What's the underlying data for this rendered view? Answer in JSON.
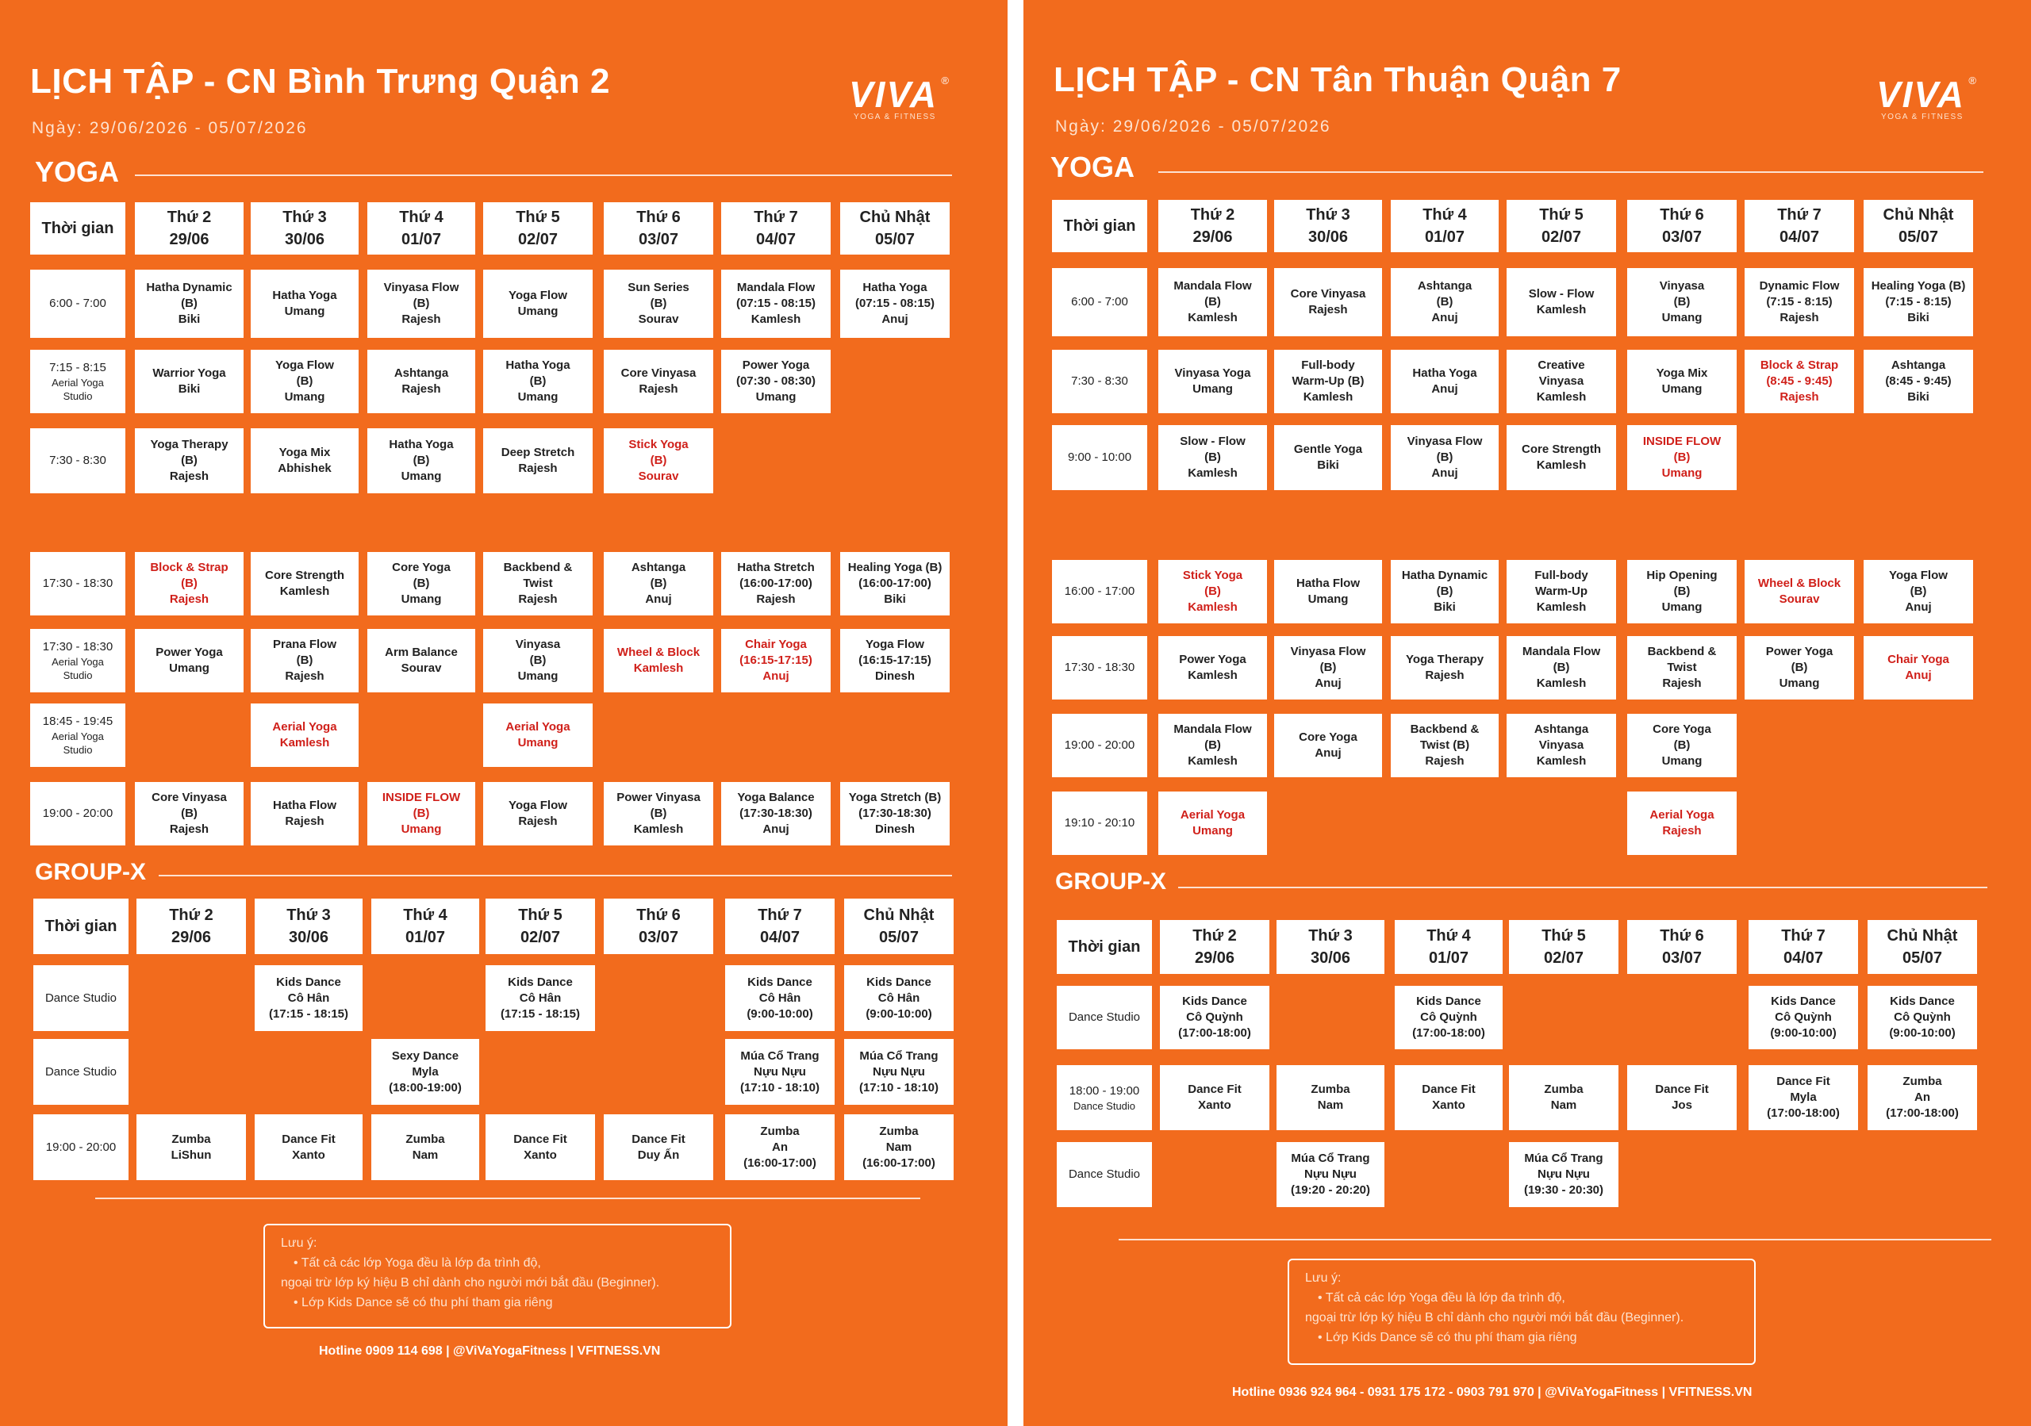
{
  "brand": {
    "logo": "VIVA",
    "logo_reg": "®",
    "logo_sub": "YOGA & FITNESS"
  },
  "colors": {
    "page_bg": "#f26b1d",
    "cell_bg": "#ffffff",
    "text": "#222222",
    "highlight": "#d0201a"
  },
  "pages": [
    {
      "title": "LỊCH TẬP - CN Bình Trưng Quận 2",
      "date": "Ngày: 29/06/2026 - 05/07/2026",
      "yoga": {
        "label": "YOGA",
        "header": [
          "Thời gian",
          "Thứ 2|29/06",
          "Thứ 3|30/06",
          "Thứ 4|01/07",
          "Thứ 5|02/07",
          "Thứ 6|03/07",
          "Thứ 7|04/07",
          "Chủ Nhật|05/07"
        ],
        "rows": [
          [
            "6:00 - 7:00",
            "Hatha Dynamic|(B)|Biki",
            "Hatha Yoga|Umang",
            "Vinyasa Flow|(B)|Rajesh",
            "Yoga Flow|Umang",
            "Sun Series|(B)|Sourav",
            "Mandala Flow|(07:15 - 08:15)|Kamlesh",
            "Hatha Yoga|(07:15 - 08:15)|Anuj"
          ],
          [
            "7:15 - 8:15|Aerial Yoga|Studio",
            "Warrior Yoga|Biki",
            "Yoga Flow|(B)|Umang",
            "Ashtanga|Rajesh",
            "Hatha Yoga|(B)|Umang",
            "Core Vinyasa|Rajesh",
            "Power Yoga|(07:30 - 08:30)|Umang",
            ""
          ],
          [
            "7:30 - 8:30",
            "Yoga Therapy|(B)|Rajesh",
            "Yoga Mix|Abhishek",
            "Hatha Yoga|(B)|Umang",
            "Deep Stretch|Rajesh",
            "!Stick Yoga|(B)|Sourav",
            "",
            ""
          ],
          [
            "17:30 - 18:30",
            "!Block & Strap|(B)|Rajesh",
            "Core Strength|Kamlesh",
            "Core Yoga|(B)|Umang",
            "Backbend &|Twist|Rajesh",
            "Ashtanga|(B)|Anuj",
            "Hatha Stretch|(16:00-17:00)|Rajesh",
            "Healing Yoga (B)|(16:00-17:00)|Biki"
          ],
          [
            "17:30 - 18:30|Aerial Yoga|Studio",
            "Power Yoga|Umang",
            "Prana Flow|(B)|Rajesh",
            "Arm Balance|Sourav",
            "Vinyasa|(B)|Umang",
            "!Wheel & Block|Kamlesh",
            "!Chair Yoga|(16:15-17:15)|Anuj",
            "Yoga Flow|(16:15-17:15)|Dinesh"
          ],
          [
            "18:45 - 19:45|Aerial Yoga|Studio",
            "",
            "!Aerial Yoga|Kamlesh",
            "",
            "!Aerial Yoga|Umang",
            "",
            "",
            ""
          ],
          [
            "19:00 - 20:00",
            "Core Vinyasa|(B)|Rajesh",
            "Hatha Flow|Rajesh",
            "!INSIDE FLOW|(B)|Umang",
            "Yoga Flow|Rajesh",
            "Power Vinyasa|(B)|Kamlesh",
            "Yoga Balance|(17:30-18:30)|Anuj",
            "Yoga Stretch (B)|(17:30-18:30)|Dinesh"
          ]
        ]
      },
      "groupx": {
        "label": "GROUP-X",
        "header": [
          "Thời gian",
          "Thứ 2|29/06",
          "Thứ 3|30/06",
          "Thứ 4|01/07",
          "Thứ 5|02/07",
          "Thứ 6|03/07",
          "Thứ 7|04/07",
          "Chủ Nhật|05/07"
        ],
        "rows": [
          [
            "Dance Studio",
            "",
            "Kids Dance|Cô Hân|(17:15 - 18:15)",
            "",
            "Kids Dance|Cô Hân|(17:15 - 18:15)",
            "",
            "Kids Dance|Cô Hân|(9:00-10:00)",
            "Kids Dance|Cô Hân|(9:00-10:00)"
          ],
          [
            "Dance Studio",
            "",
            "",
            "Sexy Dance|Myla|(18:00-19:00)",
            "",
            "",
            "Múa Cổ Trang|Nựu Nựu|(17:10 - 18:10)",
            "Múa Cổ Trang|Nựu Nựu|(17:10 - 18:10)"
          ],
          [
            "19:00 - 20:00",
            "Zumba|LiShun",
            "Dance Fit|Xanto",
            "Zumba|Nam",
            "Dance Fit|Xanto",
            "Dance Fit|Duy Ấn",
            "Zumba|An|(16:00-17:00)",
            "Zumba|Nam|(16:00-17:00)"
          ]
        ]
      },
      "notes": {
        "title": "Lưu ý:",
        "lines": [
          "• Tất cả các lớp Yoga đều là lớp đa trình độ,",
          "ngoại trừ lớp ký hiệu B chỉ dành cho người mới bắt đầu (Beginner).",
          "• Lớp Kids Dance sẽ có thu phí tham gia riêng"
        ]
      },
      "hotline": "Hotline 0909 114 698 | @ViVaYogaFitness | VFITNESS.VN"
    },
    {
      "title": "LỊCH TẬP - CN Tân Thuận Quận 7",
      "date": "Ngày: 29/06/2026 - 05/07/2026",
      "yoga": {
        "label": "YOGA",
        "header": [
          "Thời gian",
          "Thứ 2|29/06",
          "Thứ 3|30/06",
          "Thứ 4|01/07",
          "Thứ 5|02/07",
          "Thứ 6|03/07",
          "Thứ 7|04/07",
          "Chủ Nhật|05/07"
        ],
        "rows": [
          [
            "6:00 - 7:00",
            "Mandala Flow|(B)|Kamlesh",
            "Core Vinyasa|Rajesh",
            "Ashtanga|(B)|Anuj",
            "Slow - Flow|Kamlesh",
            "Vinyasa|(B)|Umang",
            "Dynamic Flow|(7:15 - 8:15)|Rajesh",
            "Healing Yoga (B)|(7:15 - 8:15)|Biki"
          ],
          [
            "7:30 - 8:30",
            "Vinyasa Yoga|Umang",
            "Full-body|Warm-Up (B)|Kamlesh",
            "Hatha Yoga|Anuj",
            "Creative|Vinyasa|Kamlesh",
            "Yoga Mix|Umang",
            "!Block & Strap|(8:45 - 9:45)|Rajesh",
            "Ashtanga|(8:45 - 9:45)|Biki"
          ],
          [
            "9:00 - 10:00",
            "Slow - Flow|(B)|Kamlesh",
            "Gentle Yoga|Biki",
            "Vinyasa Flow|(B)|Anuj",
            "Core Strength|Kamlesh",
            "!INSIDE FLOW|(B)|Umang",
            "",
            ""
          ],
          [
            "16:00 - 17:00",
            "!Stick Yoga|(B)|Kamlesh",
            "Hatha Flow|Umang",
            "Hatha Dynamic|(B)|Biki",
            "Full-body|Warm-Up|Kamlesh",
            "Hip Opening|(B)|Umang",
            "!Wheel & Block|Sourav",
            "Yoga Flow|(B)|Anuj"
          ],
          [
            "17:30 - 18:30",
            "Power Yoga|Kamlesh",
            "Vinyasa Flow|(B)|Anuj",
            "Yoga Therapy|Rajesh",
            "Mandala Flow|(B)|Kamlesh",
            "Backbend &|Twist|Rajesh",
            "Power Yoga|(B)|Umang",
            "!Chair Yoga|Anuj"
          ],
          [
            "19:00 - 20:00",
            "Mandala Flow|(B)|Kamlesh",
            "Core Yoga|Anuj",
            "Backbend &|Twist (B)|Rajesh",
            "Ashtanga|Vinyasa|Kamlesh",
            "Core Yoga|(B)|Umang",
            "",
            ""
          ],
          [
            "19:10 - 20:10",
            "!Aerial Yoga|Umang",
            "",
            "",
            "",
            "!Aerial Yoga|Rajesh",
            "",
            ""
          ]
        ]
      },
      "groupx": {
        "label": "GROUP-X",
        "header": [
          "Thời gian",
          "Thứ 2|29/06",
          "Thứ 3|30/06",
          "Thứ 4|01/07",
          "Thứ 5|02/07",
          "Thứ 6|03/07",
          "Thứ 7|04/07",
          "Chủ Nhật|05/07"
        ],
        "rows": [
          [
            "Dance Studio",
            "Kids Dance|Cô Quỳnh|(17:00-18:00)",
            "",
            "Kids Dance|Cô Quỳnh|(17:00-18:00)",
            "",
            "",
            "Kids Dance|Cô Quỳnh|(9:00-10:00)",
            "Kids Dance|Cô Quỳnh|(9:00-10:00)"
          ],
          [
            "18:00 - 19:00|Dance Studio",
            "Dance Fit|Xanto",
            "Zumba|Nam",
            "Dance Fit|Xanto",
            "Zumba|Nam",
            "Dance Fit|Jos",
            "Dance Fit|Myla|(17:00-18:00)",
            "Zumba|An|(17:00-18:00)"
          ],
          [
            "Dance Studio",
            "",
            "Múa Cổ Trang|Nựu Nựu|(19:20 - 20:20)",
            "",
            "Múa Cổ Trang|Nựu Nựu|(19:30 - 20:30)",
            "",
            "",
            ""
          ]
        ]
      },
      "notes": {
        "title": "Lưu ý:",
        "lines": [
          "• Tất cả các lớp Yoga đều là lớp đa trình độ,",
          "ngoại trừ lớp ký hiệu B chỉ dành cho người mới bắt đầu (Beginner).",
          "• Lớp Kids Dance sẽ có thu phí tham gia riêng"
        ]
      },
      "hotline": "Hotline 0936 924 964 - 0931 175 172 - 0903 791 970 | @ViVaYogaFitness | VFITNESS.VN"
    }
  ]
}
